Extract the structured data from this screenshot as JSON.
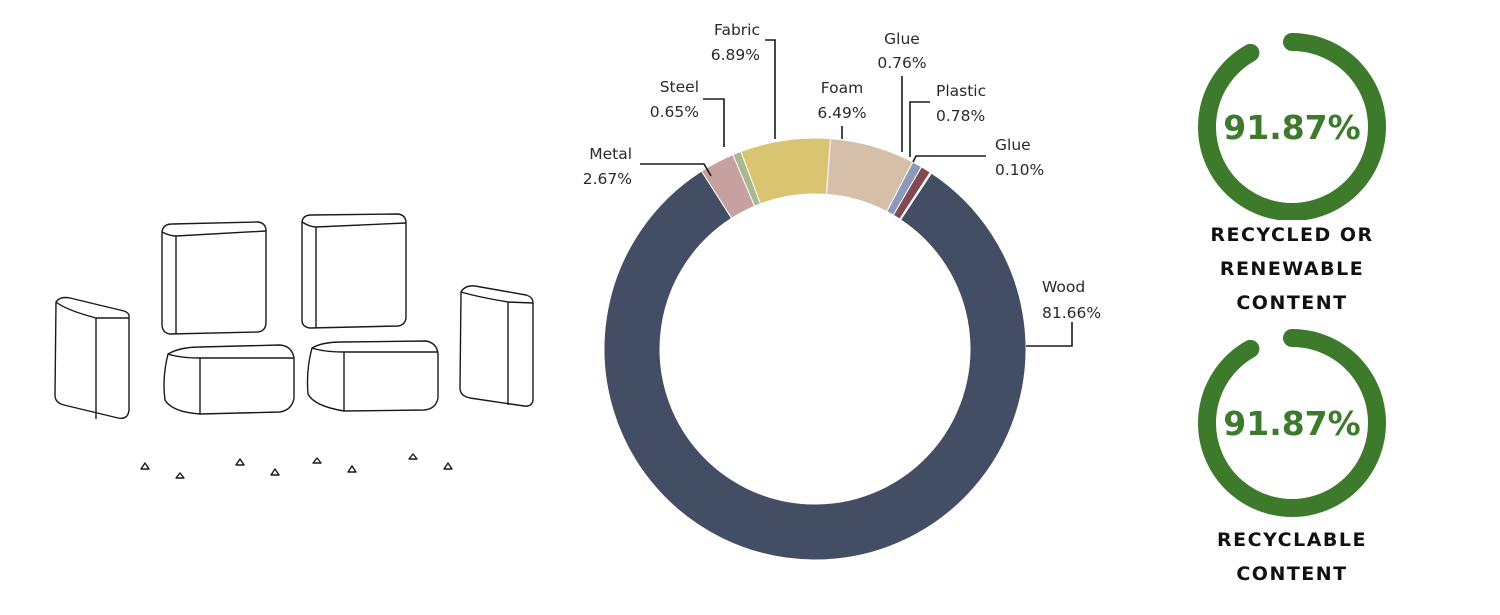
{
  "colors": {
    "wood": "#434e65",
    "metal": "#c7a0a0",
    "steel": "#a8b893",
    "fabric": "#d9c472",
    "foam": "#d5bfa8",
    "glue_1": "#8a9ab8",
    "plastic": "#7f4a52",
    "glue_2": "#e3b8ba",
    "ring": "#3d7a2c",
    "ring_text": "#3d7a2c"
  },
  "chart_data": [
    {
      "type": "pie",
      "donut": true,
      "title": "",
      "slices": [
        {
          "label": "Wood",
          "value": 81.66,
          "display": "81.66%",
          "color_key": "wood"
        },
        {
          "label": "Metal",
          "value": 2.67,
          "display": "2.67%",
          "color_key": "metal"
        },
        {
          "label": "Steel",
          "value": 0.65,
          "display": "0.65%",
          "color_key": "steel"
        },
        {
          "label": "Fabric",
          "value": 6.89,
          "display": "6.89%",
          "color_key": "fabric"
        },
        {
          "label": "Foam",
          "value": 6.49,
          "display": "6.49%",
          "color_key": "foam"
        },
        {
          "label": "Glue",
          "value": 0.76,
          "display": "0.76%",
          "color_key": "glue_1"
        },
        {
          "label": "Plastic",
          "value": 0.78,
          "display": "0.78%",
          "color_key": "plastic"
        },
        {
          "label": "Glue",
          "value": 0.1,
          "display": "0.10%",
          "color_key": "glue_2"
        }
      ]
    },
    {
      "type": "pie",
      "gauge": true,
      "value": 91.87,
      "display": "91.87%",
      "caption": [
        "RECYCLED OR RENEWABLE",
        "CONTENT"
      ]
    },
    {
      "type": "pie",
      "gauge": true,
      "value": 91.87,
      "display": "91.87%",
      "caption": [
        "RECYCLABLE",
        "CONTENT"
      ]
    }
  ]
}
